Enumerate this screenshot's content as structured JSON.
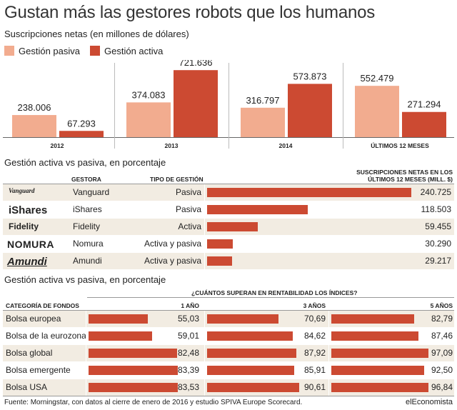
{
  "title": "Gustan más las gestores robots que los humanos",
  "subtitle": "Suscripciones netas (en millones de dólares)",
  "colors": {
    "pasiva": "#f2ac8f",
    "activa": "#cc4a32",
    "band": "#f2ece2",
    "rule": "#bbbbbb"
  },
  "chart_data": [
    {
      "type": "bar",
      "title": "Gustan más las gestores robots que los humanos",
      "subtitle": "Suscripciones netas (en millones de dólares)",
      "categories": [
        "2012",
        "2013",
        "2014",
        "ÚLTIMOS 12 MESES"
      ],
      "series": [
        {
          "name": "Gestión pasiva",
          "values": [
            238.006,
            374.083,
            316.797,
            552.479
          ],
          "labels": [
            "238.006",
            "374.083",
            "316.797",
            "552.479"
          ]
        },
        {
          "name": "Gestión activa",
          "values": [
            67.293,
            721.636,
            573.873,
            271.294
          ],
          "labels": [
            "67.293",
            "721.636",
            "573.873",
            "271.294"
          ]
        }
      ],
      "ylim": [
        0,
        800
      ],
      "legend": "top-left"
    },
    {
      "type": "bar",
      "title": "Gestión activa vs pasiva, en porcentaje",
      "headers": {
        "gestora": "GESTORA",
        "tipo": "TIPO DE GESTIÓN",
        "suscripciones": "SUSCRIPCIONES NETAS EN LOS ÚLTIMOS 12 MESES (MILL. $)"
      },
      "rows": [
        {
          "logo": "Vanguard",
          "gestora": "Vanguard",
          "tipo": "Pasiva",
          "value": 240.725,
          "label": "240.725"
        },
        {
          "logo": "iShares",
          "gestora": "iShares",
          "tipo": "Pasiva",
          "value": 118.503,
          "label": "118.503"
        },
        {
          "logo": "Fidelity",
          "gestora": "Fidelity",
          "tipo": "Activa",
          "value": 59.455,
          "label": "59.455"
        },
        {
          "logo": "NOMURA",
          "gestora": "Nomura",
          "tipo": "Activa y pasiva",
          "value": 30.29,
          "label": "30.290"
        },
        {
          "logo": "Amundi",
          "gestora": "Amundi",
          "tipo": "Activa y pasiva",
          "value": 29.217,
          "label": "29.217"
        }
      ],
      "xlim": [
        0,
        240.725
      ]
    },
    {
      "type": "bar",
      "title": "Gestión activa vs pasiva, en porcentaje",
      "question": "¿CUÁNTOS SUPERAN EN RENTABILIDAD LOS ÍNDICES?",
      "category_header": "CATEGORÍA DE FONDOS",
      "periods": [
        "1 AÑO",
        "3 AÑOS",
        "5 AÑOS"
      ],
      "categories": [
        "Bolsa europea",
        "Bolsa de la eurozona",
        "Bolsa global",
        "Bolsa emergente",
        "Bolsa USA"
      ],
      "series": [
        {
          "name": "1 AÑO",
          "values": [
            55.03,
            59.01,
            82.48,
            83.39,
            83.53
          ],
          "labels": [
            "55,03",
            "59,01",
            "82,48",
            "83,39",
            "83,53"
          ]
        },
        {
          "name": "3 AÑOS",
          "values": [
            70.69,
            84.62,
            87.92,
            85.91,
            90.61
          ],
          "labels": [
            "70,69",
            "84,62",
            "87,92",
            "85,91",
            "90,61"
          ]
        },
        {
          "name": "5 AÑOS",
          "values": [
            82.79,
            87.46,
            97.09,
            92.5,
            96.84
          ],
          "labels": [
            "82,79",
            "87,46",
            "97,09",
            "92,50",
            "96,84"
          ]
        }
      ],
      "xlim": [
        0,
        100
      ]
    }
  ],
  "footer": "Fuente: Morningstar, con datos al cierre de enero de 2016 y estudio SPIVA Europe Scorecard.",
  "brand": "elEconomista"
}
